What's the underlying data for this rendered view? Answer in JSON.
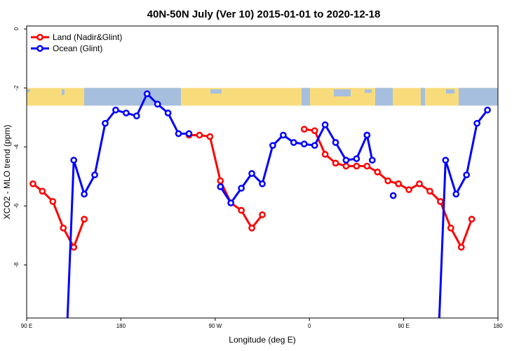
{
  "chart_data": {
    "type": "line",
    "title": "40N-50N July (Ver 10)   2015-01-01 to 2020-12-18",
    "xlabel": "Longitude (deg E)",
    "ylabel": "XCO2 - MLO trend (ppm)",
    "xlim": [
      90,
      540
    ],
    "ylim": [
      -9.8,
      0.1
    ],
    "x_ticks": [
      {
        "value": 90,
        "label": "90 E"
      },
      {
        "value": 180,
        "label": "180"
      },
      {
        "value": 270,
        "label": "90 W"
      },
      {
        "value": 360,
        "label": "0"
      },
      {
        "value": 450,
        "label": "90 E"
      },
      {
        "value": 540,
        "label": "180"
      }
    ],
    "y_ticks": [
      {
        "value": 0,
        "label": "0"
      },
      {
        "value": -2,
        "label": "-2"
      },
      {
        "value": -4,
        "label": "-4"
      },
      {
        "value": -6,
        "label": "-6"
      },
      {
        "value": -8,
        "label": "-8"
      }
    ],
    "legend_position": "top-left",
    "map_strip": {
      "y_top": -2.0,
      "y_bottom": -2.6,
      "land_color": "#f8dc7c",
      "ocean_color": "#a6bfdf"
    },
    "series": [
      {
        "name": "Land (Nadir&Glint)",
        "color": "#ff0000",
        "segments": [
          {
            "x": [
              96,
              105,
              115,
              125,
              135,
              145
            ],
            "y": [
              -5.25,
              -5.5,
              -5.85,
              -6.75,
              -7.4,
              -6.45
            ]
          },
          {
            "x": [
              245,
              255,
              265,
              275,
              285,
              295,
              305,
              315
            ],
            "y": [
              -3.6,
              -3.6,
              -3.65,
              -5.15,
              -5.9,
              -6.15,
              -6.75,
              -6.3
            ]
          },
          {
            "x": [
              355,
              365,
              375,
              385,
              395,
              405,
              415,
              425,
              435,
              445,
              455,
              465,
              475,
              485,
              495,
              505,
              515,
              525,
              535
            ],
            "y": [
              -3.4,
              -3.45,
              -4.25,
              -4.55,
              -4.65,
              -4.65,
              -4.65,
              -4.85,
              -5.15,
              -5.25,
              -5.45,
              -5.25,
              -5.5,
              -5.85,
              -6.75,
              -7.4,
              -6.45,
              null,
              null
            ]
          }
        ]
      },
      {
        "name": "Ocean (Glint)",
        "color": "#0000ff",
        "segments": [
          {
            "x": [
              129,
              135,
              145,
              155,
              165,
              175,
              185,
              195,
              205,
              215,
              225,
              235,
              245
            ],
            "y": [
              -9.8,
              -4.45,
              -5.6,
              -4.95,
              -3.2,
              -2.75,
              -2.85,
              -2.95,
              -2.2,
              -2.55,
              -2.85,
              -3.55,
              -3.55
            ]
          },
          {
            "x": [
              265,
              275,
              285,
              295,
              305,
              315,
              325,
              335,
              345,
              355,
              365,
              375,
              385,
              395,
              405,
              415
            ],
            "y": [
              null,
              -5.35,
              -5.9,
              -5.4,
              -4.9,
              -5.25,
              -3.95,
              -3.6,
              -3.85,
              -3.9,
              -3.95,
              -3.25,
              -3.85,
              -4.45,
              -4.4,
              -3.6
            ]
          },
          {
            "x": [
              415,
              420
            ],
            "y": [
              -3.6,
              -4.45
            ]
          },
          {
            "x": [
              440
            ],
            "y": [
              -5.65
            ]
          },
          {
            "x": [
              484,
              490,
              500,
              510,
              520,
              530,
              540
            ],
            "y": [
              -9.8,
              -4.45,
              -5.6,
              -4.95,
              -3.2,
              -2.75,
              null
            ]
          }
        ]
      }
    ]
  }
}
